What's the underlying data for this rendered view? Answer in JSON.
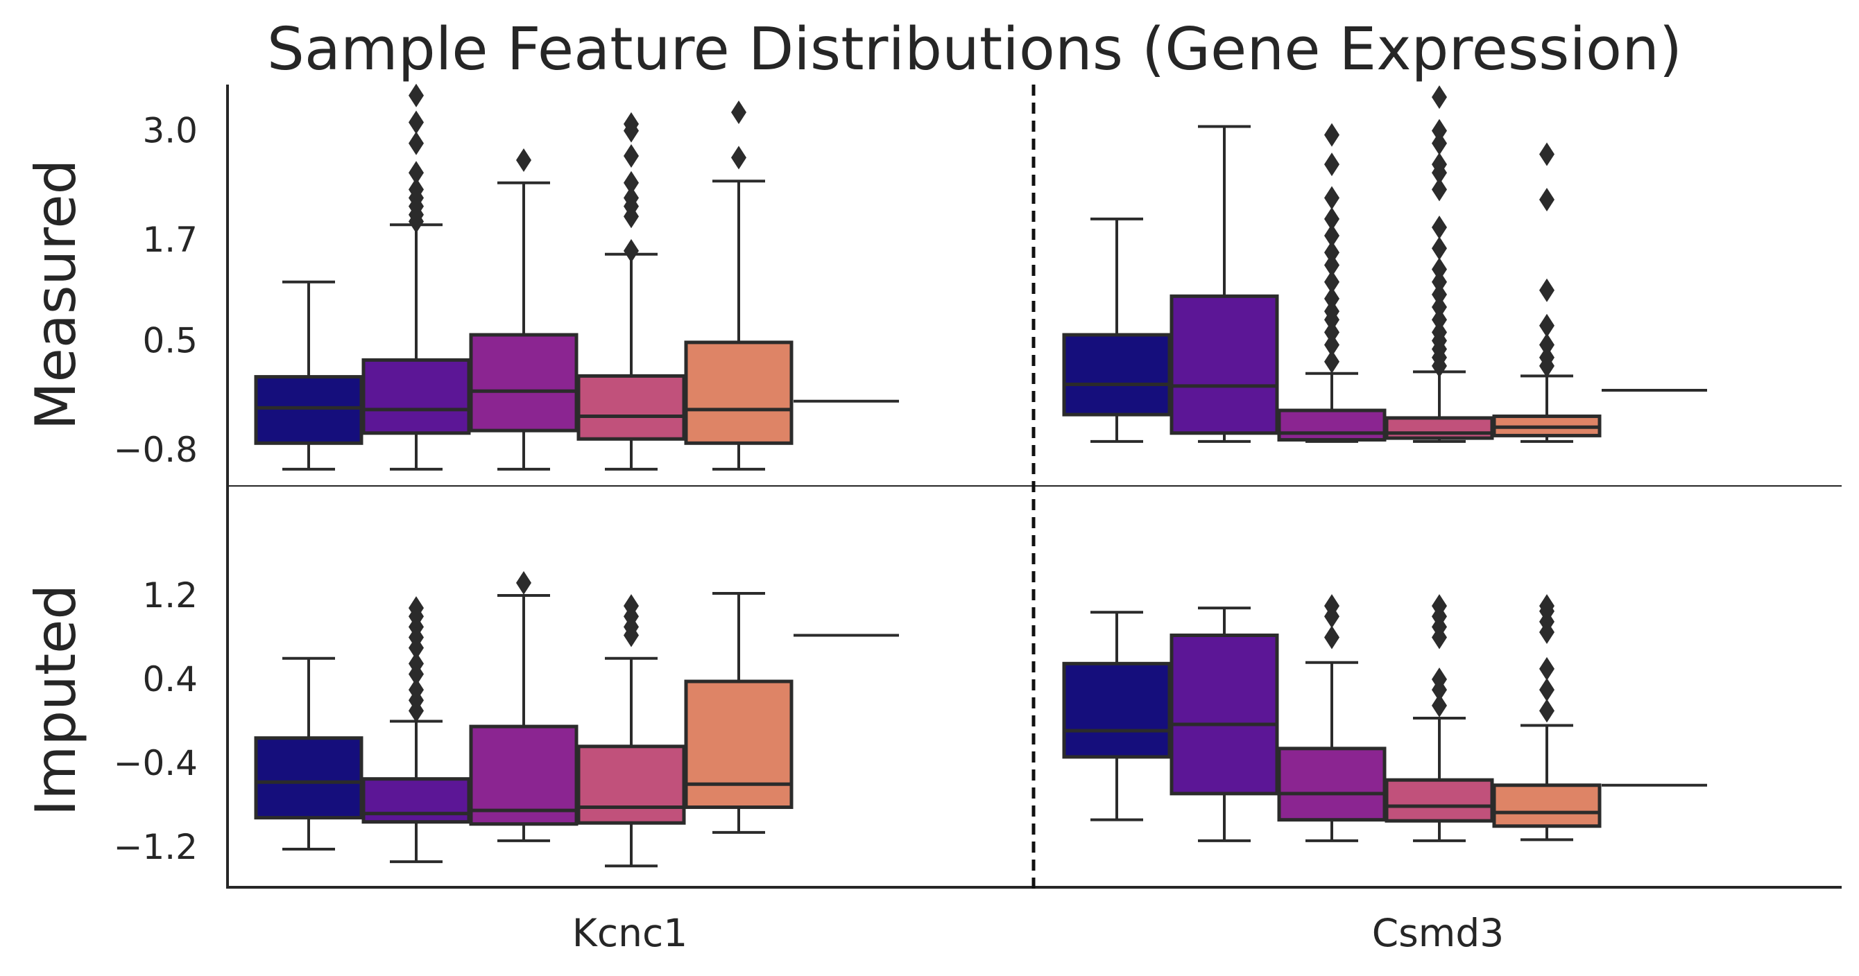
{
  "chart_data": {
    "type": "box",
    "title": "Sample Feature Distributions (Gene Expression)",
    "genes": [
      "Kcnc1",
      "Csmd3"
    ],
    "rows": [
      {
        "label": "Measured",
        "ticks": [
          {
            "value": -0.8,
            "label": "−0.8"
          },
          {
            "value": 0.5,
            "label": "0.5"
          },
          {
            "value": 1.7,
            "label": "1.7"
          },
          {
            "value": 3.0,
            "label": "3.0"
          }
        ],
        "ylim": [
          -1.2,
          3.5
        ],
        "boxes": [
          [
            {
              "color": "#150e7c",
              "wlo": -1.03,
              "q1": -0.72,
              "med": -0.3,
              "q3": 0.07,
              "whi": 1.2,
              "outliers": []
            },
            {
              "color": "#5c1696",
              "wlo": -1.03,
              "q1": -0.6,
              "med": -0.32,
              "q3": 0.27,
              "whi": 1.88,
              "outliers": [
                1.92,
                2.0,
                2.1,
                2.2,
                2.3,
                2.5,
                2.85,
                3.1,
                3.42
              ]
            },
            {
              "color": "#8b2591",
              "wlo": -1.03,
              "q1": -0.57,
              "med": -0.1,
              "q3": 0.57,
              "whi": 2.38,
              "outliers": [
                2.65
              ]
            },
            {
              "color": "#c1517b",
              "wlo": -1.03,
              "q1": -0.67,
              "med": -0.4,
              "q3": 0.08,
              "whi": 1.53,
              "outliers": [
                1.57,
                1.98,
                2.1,
                2.2,
                2.38,
                2.7,
                3.0,
                3.08
              ]
            },
            {
              "color": "#de8466",
              "wlo": -1.03,
              "q1": -0.72,
              "med": -0.32,
              "q3": 0.48,
              "whi": 2.4,
              "outliers": [
                2.68,
                3.22
              ]
            },
            {
              "color": "#d49a8f",
              "wlo": -0.22,
              "q1": -0.22,
              "med": -0.22,
              "q3": -0.22,
              "whi": -0.22,
              "outliers": []
            }
          ],
          [
            {
              "color": "#150e7c",
              "wlo": -0.7,
              "q1": -0.38,
              "med": -0.02,
              "q3": 0.57,
              "whi": 1.95,
              "outliers": []
            },
            {
              "color": "#5c1696",
              "wlo": -0.7,
              "q1": -0.6,
              "med": -0.04,
              "q3": 1.03,
              "whi": 3.05,
              "outliers": []
            },
            {
              "color": "#8b2591",
              "wlo": -0.7,
              "q1": -0.68,
              "med": -0.6,
              "q3": -0.33,
              "whi": 0.11,
              "outliers": [
                0.25,
                0.45,
                0.6,
                0.75,
                0.85,
                1.0,
                1.2,
                1.4,
                1.55,
                1.75,
                1.95,
                2.2,
                2.6,
                2.95
              ]
            },
            {
              "color": "#c1517b",
              "wlo": -0.7,
              "q1": -0.66,
              "med": -0.6,
              "q3": -0.42,
              "whi": 0.13,
              "outliers": [
                0.2,
                0.3,
                0.4,
                0.5,
                0.6,
                0.75,
                0.9,
                1.05,
                1.2,
                1.35,
                1.6,
                1.85,
                2.3,
                2.5,
                2.6,
                2.85,
                3.0,
                3.4
              ]
            },
            {
              "color": "#de8466",
              "wlo": -0.7,
              "q1": -0.63,
              "med": -0.53,
              "q3": -0.4,
              "whi": 0.08,
              "outliers": [
                0.2,
                0.3,
                0.45,
                0.68,
                1.1,
                2.18,
                2.72
              ]
            },
            {
              "color": "#d49a8f",
              "wlo": -0.09,
              "q1": -0.09,
              "med": -0.09,
              "q3": -0.09,
              "whi": -0.09,
              "outliers": []
            }
          ]
        ]
      },
      {
        "label": "Imputed",
        "ticks": [
          {
            "value": -1.2,
            "label": "−1.2"
          },
          {
            "value": -0.4,
            "label": "−0.4"
          },
          {
            "value": 0.4,
            "label": "0.4"
          },
          {
            "value": 1.2,
            "label": "1.2"
          }
        ],
        "ylim": [
          -1.5,
          1.5
        ],
        "boxes": [
          [
            {
              "color": "#150e7c",
              "wlo": -1.22,
              "q1": -0.92,
              "med": -0.58,
              "q3": -0.16,
              "whi": 0.6,
              "outliers": []
            },
            {
              "color": "#5c1696",
              "wlo": -1.34,
              "q1": -0.96,
              "med": -0.88,
              "q3": -0.55,
              "whi": 0.0,
              "outliers": [
                0.1,
                0.2,
                0.3,
                0.45,
                0.55,
                0.7,
                0.8,
                0.9,
                1.0,
                1.08
              ]
            },
            {
              "color": "#8b2591",
              "wlo": -1.14,
              "q1": -0.98,
              "med": -0.85,
              "q3": -0.05,
              "whi": 1.2,
              "outliers": [
                1.32
              ]
            },
            {
              "color": "#c1517b",
              "wlo": -1.38,
              "q1": -0.97,
              "med": -0.82,
              "q3": -0.24,
              "whi": 0.6,
              "outliers": [
                0.82,
                0.9,
                1.0,
                1.1
              ]
            },
            {
              "color": "#de8466",
              "wlo": -1.06,
              "q1": -0.82,
              "med": -0.6,
              "q3": 0.38,
              "whi": 1.22,
              "outliers": []
            },
            {
              "color": "#d49a8f",
              "wlo": 0.82,
              "q1": 0.82,
              "med": 0.82,
              "q3": 0.82,
              "whi": 0.82,
              "outliers": []
            }
          ],
          [
            {
              "color": "#150e7c",
              "wlo": -0.94,
              "q1": -0.34,
              "med": -0.09,
              "q3": 0.55,
              "whi": 1.04,
              "outliers": []
            },
            {
              "color": "#5c1696",
              "wlo": -1.14,
              "q1": -0.69,
              "med": -0.03,
              "q3": 0.82,
              "whi": 1.08,
              "outliers": []
            },
            {
              "color": "#8b2591",
              "wlo": -1.14,
              "q1": -0.94,
              "med": -0.69,
              "q3": -0.26,
              "whi": 0.56,
              "outliers": [
                0.8,
                1.0,
                1.1
              ]
            },
            {
              "color": "#c1517b",
              "wlo": -1.14,
              "q1": -0.95,
              "med": -0.81,
              "q3": -0.56,
              "whi": 0.03,
              "outliers": [
                0.15,
                0.3,
                0.4,
                0.8,
                0.9,
                1.0,
                1.1
              ]
            },
            {
              "color": "#de8466",
              "wlo": -1.13,
              "q1": -1.0,
              "med": -0.87,
              "q3": -0.61,
              "whi": -0.04,
              "outliers": [
                0.1,
                0.3,
                0.5,
                0.85,
                0.95,
                1.05,
                1.1
              ]
            },
            {
              "color": "#d49a8f",
              "wlo": -0.61,
              "q1": -0.61,
              "med": -0.61,
              "q3": -0.61,
              "whi": -0.61,
              "outliers": []
            }
          ]
        ]
      }
    ]
  }
}
